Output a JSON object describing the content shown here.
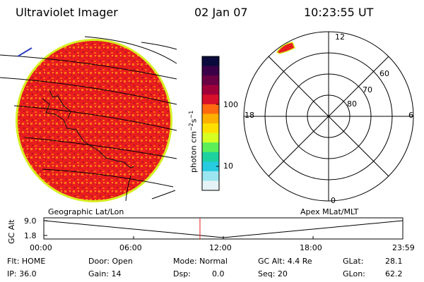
{
  "header": {
    "instrument": "Ultraviolet Imager",
    "date": "02 Jan 07",
    "time": "10:23:55 UT"
  },
  "left_panel": {
    "caption": "Geographic Lat/Lon"
  },
  "right_panel": {
    "caption": "Apex MLat/MLT",
    "mlt_labels": [
      "12",
      "18",
      "6",
      "0"
    ],
    "lat_labels": [
      "60",
      "70",
      "80"
    ]
  },
  "colorbar": {
    "unit_label": "photon cm",
    "unit_sup1": "−2",
    "unit_mid": "s",
    "unit_sup2": "−1",
    "tick_labels": [
      "100",
      "10"
    ],
    "colors": [
      "#0a0a3c",
      "#3a0048",
      "#6a0044",
      "#a0003a",
      "#d8102a",
      "#ff6a10",
      "#ffb000",
      "#ffe000",
      "#d6ff22",
      "#5cef5a",
      "#1ed2a0",
      "#27cbe0",
      "#9be6f0",
      "#e6f3f6"
    ]
  },
  "gc_alt_plot": {
    "ylabel": "GC Alt",
    "ytick_labels": [
      "9.0",
      "1.8"
    ],
    "xtick_labels": [
      "00:00",
      "06:00",
      "12:00",
      "18:00",
      "23:59"
    ],
    "current_time_fraction": 0.435
  },
  "status": {
    "flt": "Flt: HOME",
    "ip": "IP: 36.0",
    "door": "Door: Open",
    "gain": "Gain: 14",
    "mode": "Mode: Normal",
    "dsp": "Dsp:",
    "dsp_value": "0.0",
    "gc_alt": "GC Alt: 4.4 Re",
    "seq": "Seq: 20",
    "glat": "GLat:",
    "glat_value": "28.1",
    "glon": "GLon:",
    "glon_value": "62.2"
  }
}
